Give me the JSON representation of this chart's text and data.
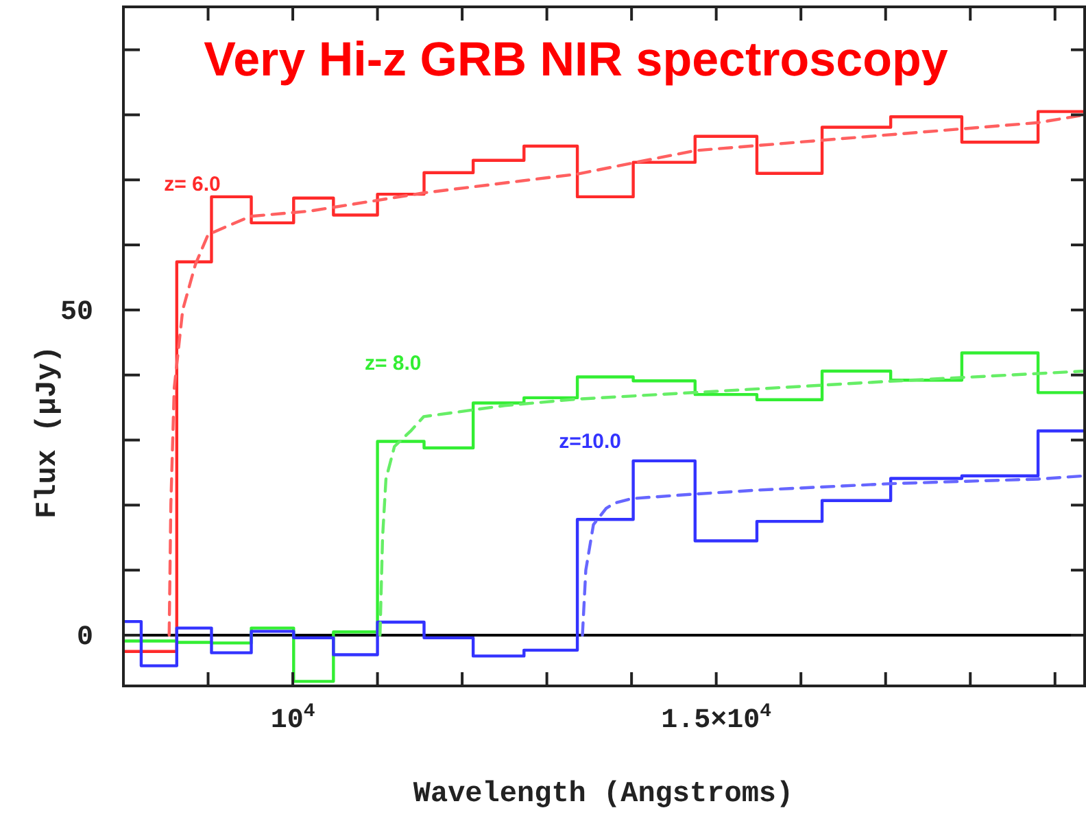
{
  "chart_data": {
    "type": "step",
    "title": "Very Hi-z GRB NIR spectroscopy",
    "xlabel": "Wavelength (Angstroms)",
    "ylabel": "Flux (μJy)",
    "x": [
      8000,
      8210,
      8630,
      9040,
      9510,
      10010,
      10480,
      11000,
      11550,
      12130,
      12730,
      13360,
      14020,
      14750,
      15480,
      16250,
      17060,
      17900,
      18800,
      19350
    ],
    "series": [
      {
        "name": "z= 6.0",
        "color": "#ff2a2a",
        "values": [
          -2.5,
          -2.5,
          57.4,
          67.4,
          63.4,
          67.2,
          64.6,
          67.8,
          71.1,
          73.0,
          75.2,
          67.4,
          72.7,
          76.7,
          71.0,
          78.1,
          79.7,
          75.8,
          80.5,
          80.5
        ]
      },
      {
        "name": "z= 8.0",
        "color": "#33ee33",
        "values": [
          -0.9,
          -0.9,
          -1.1,
          -1.2,
          1.1,
          -7.1,
          0.5,
          29.8,
          28.8,
          35.7,
          36.5,
          39.7,
          39.1,
          37.0,
          36.2,
          40.6,
          39.2,
          43.4,
          37.3,
          37.3
        ]
      },
      {
        "name": "z=10.0",
        "color": "#3333ff",
        "values": [
          2.1,
          -4.7,
          1.1,
          -2.7,
          0.6,
          -0.4,
          -3.0,
          2.0,
          -0.4,
          -3.2,
          -2.3,
          17.8,
          26.8,
          14.5,
          17.5,
          20.7,
          24.1,
          24.5,
          31.4,
          31.4
        ]
      },
      {
        "type": "line",
        "line_style": "dashed",
        "color": "#ff6060",
        "x": [
          8540,
          8560,
          8600,
          8700,
          8850,
          9000,
          9500,
          10200,
          11545,
          13360,
          14750,
          18800,
          19350
        ],
        "values": [
          0,
          20,
          38,
          50,
          57,
          61.6,
          64.4,
          65.2,
          68.0,
          70.9,
          74.5,
          78.8,
          80.0
        ]
      },
      {
        "type": "line",
        "line_style": "dashed",
        "color": "#66ee66",
        "x": [
          11030,
          11060,
          11100,
          11200,
          11400,
          11545,
          12500,
          13360,
          15000,
          17000,
          19350
        ],
        "values": [
          0,
          15,
          24,
          29,
          31.5,
          33.6,
          35.3,
          36.3,
          37.5,
          39.0,
          40.6
        ]
      },
      {
        "type": "line",
        "line_style": "dashed",
        "color": "#6666ff",
        "x": [
          13420,
          13460,
          13550,
          13700,
          13800,
          14000,
          14750,
          15480,
          17060,
          18800,
          19350
        ],
        "values": [
          0,
          10,
          17,
          19.5,
          20.3,
          21.0,
          21.7,
          22.3,
          23.3,
          24.0,
          24.5
        ]
      }
    ],
    "xlim": [
      8000,
      19350
    ],
    "ylim": [
      -7.8,
      96.6
    ],
    "xticks": [
      {
        "value": 8000,
        "label": null
      },
      {
        "value": 9000,
        "label": null
      },
      {
        "value": 10000,
        "label": "10$^{4}$"
      },
      {
        "value": 11000,
        "label": null
      },
      {
        "value": 12000,
        "label": null
      },
      {
        "value": 13000,
        "label": null
      },
      {
        "value": 14000,
        "label": null
      },
      {
        "value": 15000,
        "label": "1.5×10$^{4}$"
      },
      {
        "value": 16000,
        "label": null
      },
      {
        "value": 17000,
        "label": null
      },
      {
        "value": 18000,
        "label": null
      },
      {
        "value": 19000,
        "label": null
      }
    ],
    "yticks": [
      0,
      {
        "value": 10,
        "label": null
      },
      {
        "value": 20,
        "label": null
      },
      {
        "value": 30,
        "label": null
      },
      {
        "value": 40,
        "label": null
      },
      50,
      {
        "value": 60,
        "label": null
      },
      {
        "value": 70,
        "label": null
      },
      {
        "value": 80,
        "label": null
      },
      {
        "value": 90,
        "label": null
      }
    ],
    "ref_lines": [
      {
        "axis": "y",
        "value": 0,
        "label": null,
        "color": "#000000",
        "line_style": "solid"
      }
    ],
    "grid": false
  }
}
